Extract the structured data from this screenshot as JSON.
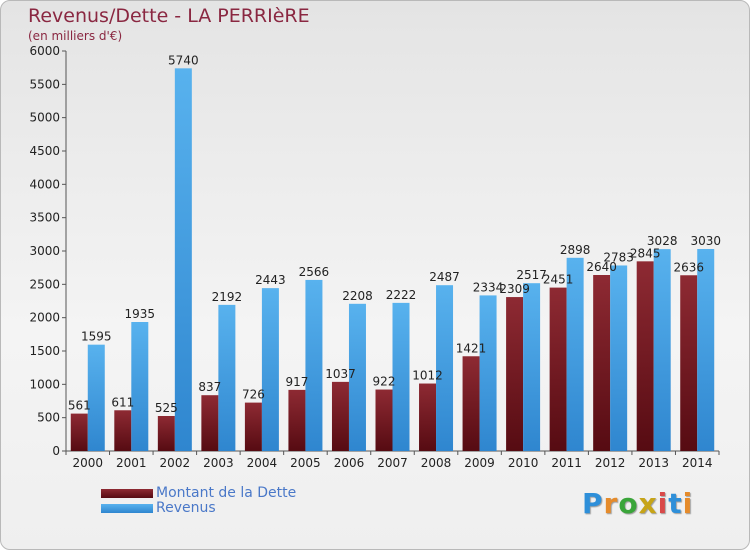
{
  "title": "Revenus/Dette - LA PERRIèRE",
  "subtitle": "(en milliers d'€)",
  "logo": {
    "text": "Proxiti",
    "letters": [
      "P",
      "r",
      "o",
      "x",
      "i",
      "t",
      "i"
    ]
  },
  "chart_data": {
    "type": "bar",
    "title": "Revenus/Dette - LA PERRIèRE",
    "subtitle": "(en milliers d'€)",
    "categories": [
      "2000",
      "2001",
      "2002",
      "2003",
      "2004",
      "2005",
      "2006",
      "2007",
      "2008",
      "2009",
      "2010",
      "2011",
      "2012",
      "2013",
      "2014"
    ],
    "series": [
      {
        "name": "Montant de la Dette",
        "color": "#7a1a24",
        "values": [
          561,
          611,
          525,
          837,
          726,
          917,
          1037,
          922,
          1012,
          1421,
          2309,
          2451,
          2640,
          2845,
          2636
        ],
        "labels": [
          "561",
          "611",
          "525",
          "837",
          "726",
          "917",
          "1037",
          "922",
          "1012",
          "1421",
          "2309",
          "2451",
          "2640",
          "2845",
          "2636"
        ]
      },
      {
        "name": "Revenus",
        "color": "#4aa3e4",
        "values": [
          1595,
          1935,
          5740,
          2192,
          2443,
          2566,
          2208,
          2222,
          2487,
          2334,
          2517,
          2898,
          2783,
          3028,
          3030
        ],
        "labels": [
          "1595",
          "1935",
          "5740",
          "2192",
          "2443",
          "2566",
          "2208",
          "2222",
          "2487",
          "2334",
          "2517",
          "2898",
          "2783",
          "3028",
          "3030"
        ]
      }
    ],
    "ylim": [
      0,
      6000
    ],
    "yticks": [
      0,
      500,
      1000,
      1500,
      2000,
      2500,
      3000,
      3500,
      4000,
      4500,
      5000,
      5500,
      6000
    ],
    "grid": false,
    "legend": "bottom-left"
  }
}
